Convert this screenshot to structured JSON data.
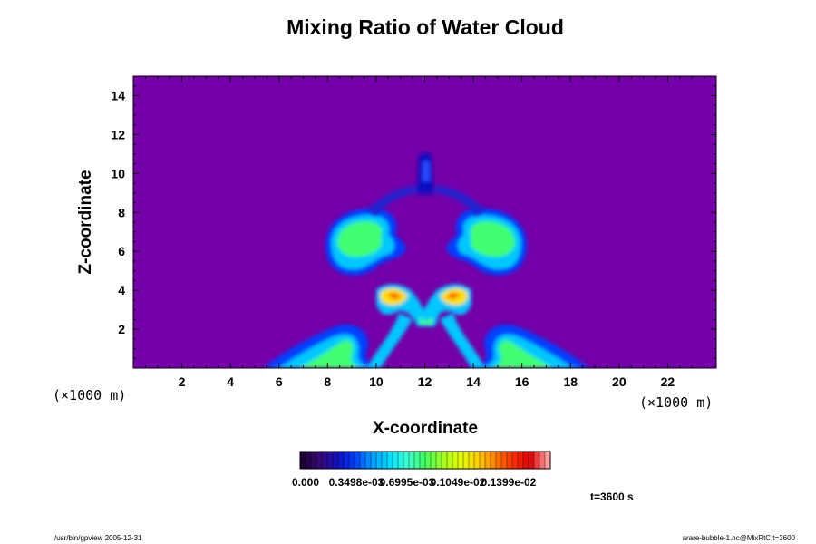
{
  "chart_data": {
    "type": "heatmap",
    "title": "Mixing Ratio of Water Cloud",
    "xlabel": "X-coordinate",
    "ylabel": "Z-coordinate",
    "x_unit": "(×1000 m)",
    "y_unit": "(×1000 m)",
    "xlim": [
      0,
      24
    ],
    "ylim": [
      0,
      15
    ],
    "x_ticks": [
      "2",
      "4",
      "6",
      "8",
      "10",
      "12",
      "14",
      "16",
      "18",
      "20",
      "22"
    ],
    "y_ticks": [
      "2",
      "4",
      "6",
      "8",
      "10",
      "12",
      "14"
    ],
    "colorbar": {
      "labels": [
        "0.000",
        "0.3498e-03",
        "0.6995e-03",
        "0.1049e-02",
        "0.1399e-02"
      ],
      "colors": [
        "#1a0033",
        "#3a0a7a",
        "#1010c0",
        "#0040ff",
        "#00a0ff",
        "#00e0ff",
        "#40ffd0",
        "#40ff60",
        "#a0ff20",
        "#e0ff00",
        "#ffd000",
        "#ff8000",
        "#ff3000",
        "#e00000",
        "#ffa0a0"
      ]
    },
    "background_color": "#7300a8",
    "time_label": "t=3600 s",
    "footer_left": "/usr/bin/gpview 2005-12-31",
    "footer_right": "arare-bubble-1.nc@MixRtC,t=3600"
  }
}
